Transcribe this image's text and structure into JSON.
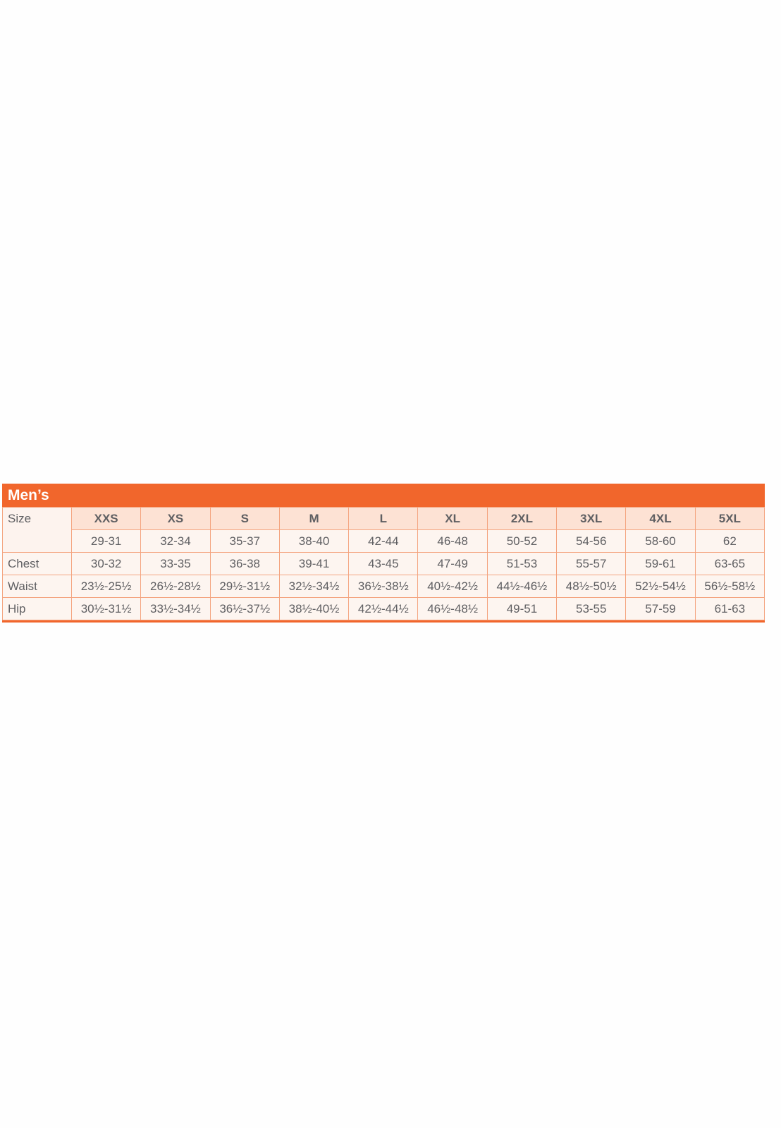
{
  "title": "Men’s",
  "accent_color": "#f1662c",
  "row_labels": {
    "size": "Size",
    "chest": "Chest",
    "waist": "Waist",
    "hip": "Hip"
  },
  "sizes": [
    "XXS",
    "XS",
    "S",
    "M",
    "L",
    "XL",
    "2XL",
    "3XL",
    "4XL",
    "5XL"
  ],
  "size_numbers": [
    "29-31",
    "32-34",
    "35-37",
    "38-40",
    "42-44",
    "46-48",
    "50-52",
    "54-56",
    "58-60",
    "62"
  ],
  "chest": [
    "30-32",
    "33-35",
    "36-38",
    "39-41",
    "43-45",
    "47-49",
    "51-53",
    "55-57",
    "59-61",
    "63-65"
  ],
  "waist": [
    "23½-25½",
    "26½-28½",
    "29½-31½",
    "32½-34½",
    "36½-38½",
    "40½-42½",
    "44½-46½",
    "48½-50½",
    "52½-54½",
    "56½-58½"
  ],
  "hip": [
    "30½-31½",
    "33½-34½",
    "36½-37½",
    "38½-40½",
    "42½-44½",
    "46½-48½",
    "49-51",
    "53-55",
    "57-59",
    "61-63"
  ]
}
